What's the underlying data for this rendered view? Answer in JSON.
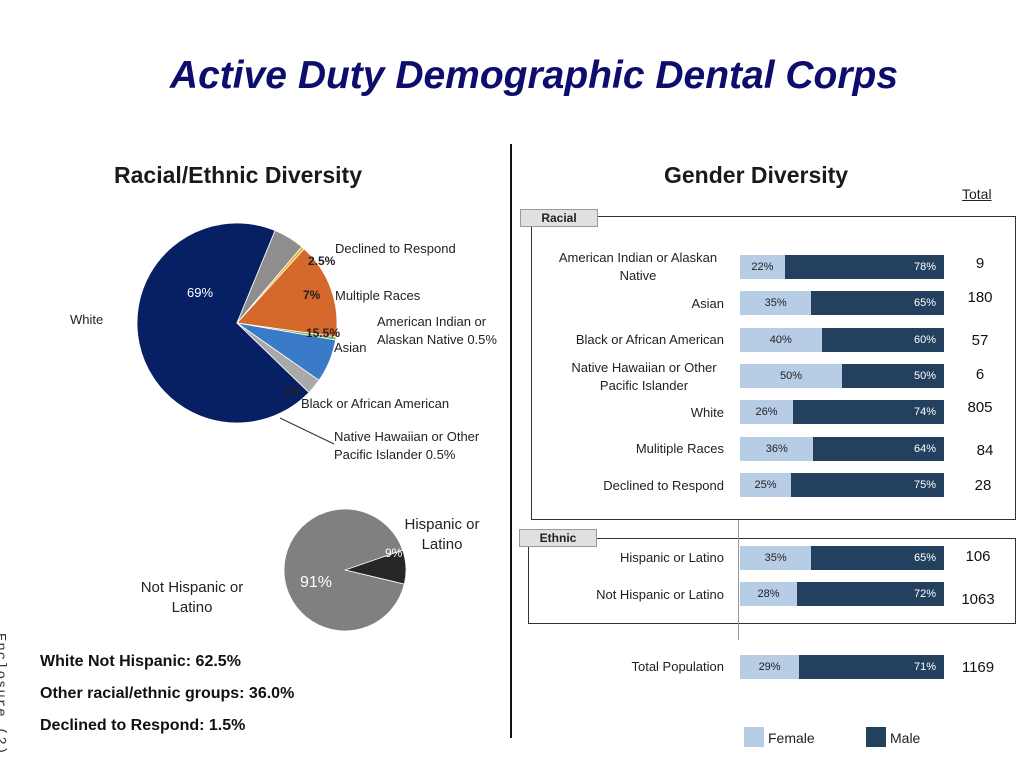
{
  "title": "Active Duty Demographic Dental Corps",
  "side_note": "Enclosure (2)",
  "racial": {
    "heading": "Racial/Ethnic Diversity",
    "white_label": "White",
    "white_pct": "69%",
    "labels": {
      "declined": "Declined to Respond",
      "declined_pct": "2.5%",
      "multiple": "Multiple Races",
      "multiple_pct": "7%",
      "ai_line1": "American Indian or",
      "ai_line2": "Alaskan Native  0.5%",
      "asian": "Asian",
      "asian_pct": "15.5%",
      "black": "Black or African American",
      "black_pct": "5%",
      "nh_line1": "Native Hawaiian or Other",
      "nh_line2": "Pacific Islander  0.5%"
    }
  },
  "ethnic_pie": {
    "hispanic_line1": "Hispanic or",
    "hispanic_line2": "Latino",
    "hispanic_pct": "9%",
    "not_line1": "Not Hispanic or",
    "not_line2": "Latino",
    "not_pct": "91%"
  },
  "summary": {
    "line1": "White Not Hispanic: 62.5%",
    "line2": "Other racial/ethnic groups: 36.0%",
    "line3": "Declined to Respond: 1.5%"
  },
  "gender": {
    "heading": "Gender Diversity",
    "total_header": "Total",
    "racial_tab": "Racial",
    "ethnic_tab": "Ethnic",
    "legend_female": "Female",
    "legend_male": "Male"
  },
  "colors": {
    "white": "#062063",
    "asian": "#d5682b",
    "multiple": "#3a7bc8",
    "declined": "#a9a9a9",
    "black": "#8e8e8e",
    "american_indian": "#7fb24a",
    "native_hawaiian": "#e8b41c",
    "hispanic": "#262626",
    "not_hispanic": "#808080",
    "female": "#b7cde6",
    "male": "#24405f"
  },
  "chart_data": [
    {
      "type": "pie",
      "title": "Racial/Ethnic Diversity",
      "slices": [
        {
          "label": "White",
          "value": 69
        },
        {
          "label": "Black or African American",
          "value": 5
        },
        {
          "label": "Native Hawaiian or Other Pacific Islander",
          "value": 0.5
        },
        {
          "label": "Asian",
          "value": 15.5
        },
        {
          "label": "American Indian or Alaskan Native",
          "value": 0.5
        },
        {
          "label": "Multiple Races",
          "value": 7
        },
        {
          "label": "Declined to Respond",
          "value": 2.5
        }
      ]
    },
    {
      "type": "pie",
      "title": "Ethnicity",
      "slices": [
        {
          "label": "Hispanic or Latino",
          "value": 9
        },
        {
          "label": "Not Hispanic or Latino",
          "value": 91
        }
      ]
    },
    {
      "type": "bar",
      "title": "Gender Diversity",
      "series_names": [
        "Female",
        "Male"
      ],
      "groups": [
        {
          "name": "Racial",
          "rows": [
            {
              "label": "American Indian or Alaskan Native",
              "female": 22,
              "male": 78,
              "total": 9
            },
            {
              "label": "Asian",
              "female": 35,
              "male": 65,
              "total": 180
            },
            {
              "label": "Black or African American",
              "female": 40,
              "male": 60,
              "total": 57
            },
            {
              "label": "Native Hawaiian or Other Pacific Islander",
              "female": 50,
              "male": 50,
              "total": 6
            },
            {
              "label": "White",
              "female": 26,
              "male": 74,
              "total": 805
            },
            {
              "label": "Mulitiple Races",
              "female": 36,
              "male": 64,
              "total": 84
            },
            {
              "label": "Declined to Respond",
              "female": 25,
              "male": 75,
              "total": 28
            }
          ]
        },
        {
          "name": "Ethnic",
          "rows": [
            {
              "label": "Hispanic or Latino",
              "female": 35,
              "male": 65,
              "total": 106
            },
            {
              "label": "Not Hispanic or Latino",
              "female": 28,
              "male": 72,
              "total": 1063
            }
          ]
        },
        {
          "name": "",
          "rows": [
            {
              "label": "Total Population",
              "female": 29,
              "male": 71,
              "total": 1169
            }
          ]
        }
      ]
    }
  ]
}
